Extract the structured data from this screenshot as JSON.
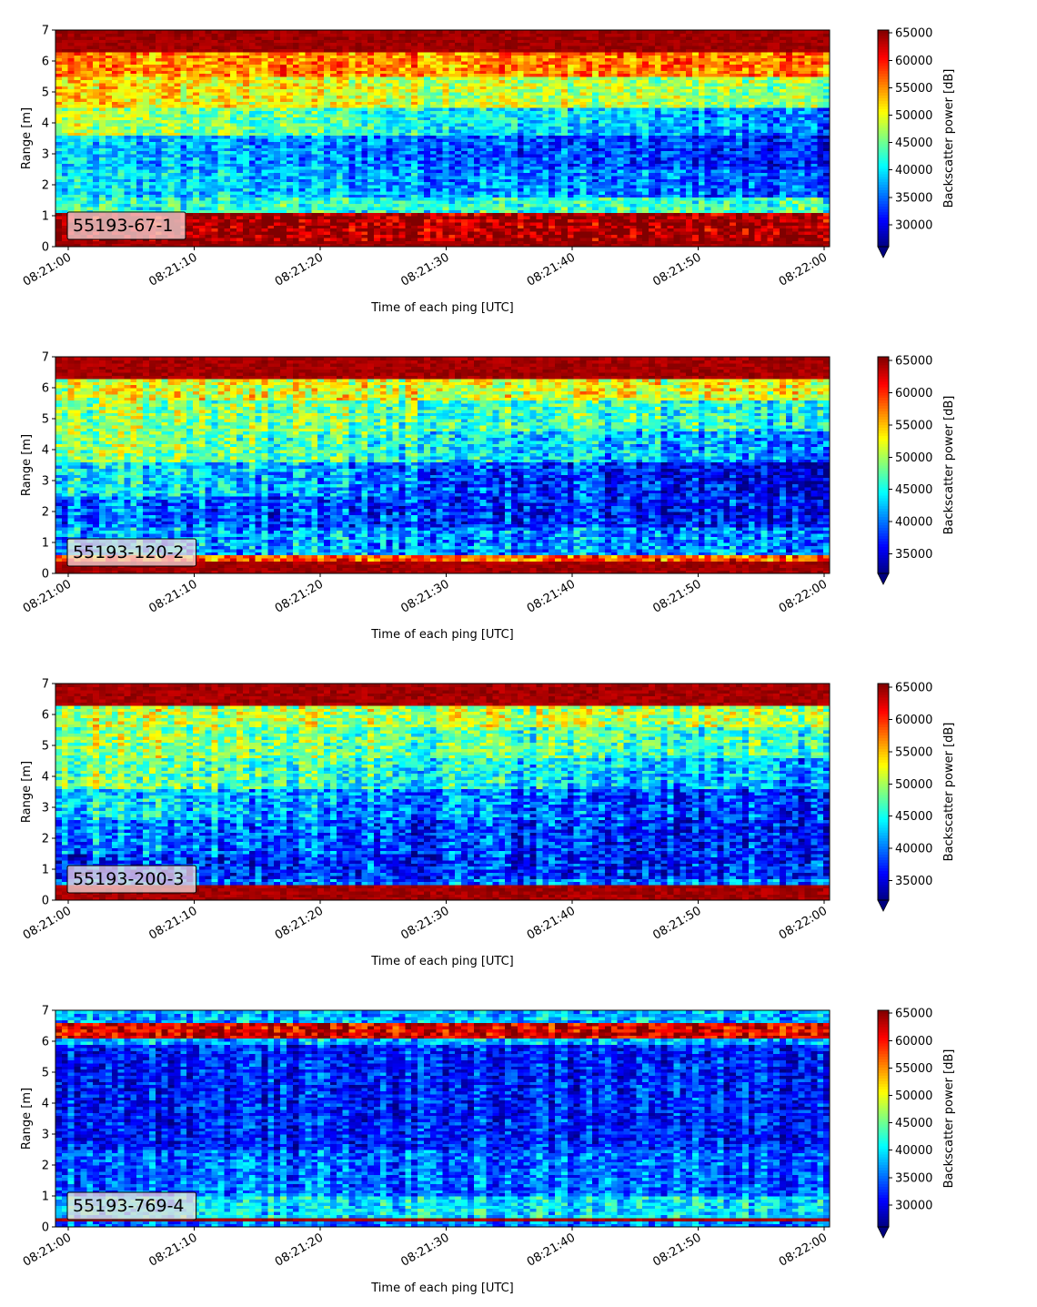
{
  "chart_data": [
    {
      "type": "heatmap",
      "label": "55193-67-1",
      "xlabel": "Time of each ping [UTC]",
      "ylabel": "Range [m]",
      "x_ticks": [
        "08:21:00",
        "08:21:10",
        "08:21:20",
        "08:21:30",
        "08:21:40",
        "08:21:50",
        "08:22:00"
      ],
      "x_range": [
        "08:21:00",
        "08:22:00"
      ],
      "ylim": [
        0,
        7
      ],
      "y_ticks": [
        0,
        1,
        2,
        3,
        4,
        5,
        6,
        7
      ],
      "colorbar": {
        "label": "Backscatter power [dB]",
        "range": [
          26000,
          65535
        ],
        "ticks": [
          30000,
          35000,
          40000,
          45000,
          50000,
          55000,
          60000,
          65000
        ],
        "extend": "min"
      },
      "colormap": "jet",
      "profile": [
        {
          "range": [
            0.0,
            0.25
          ],
          "start": 65535,
          "end": 65535
        },
        {
          "range": [
            0.25,
            1.15
          ],
          "start": 64000,
          "end": 64000
        },
        {
          "range": [
            1.15,
            1.6
          ],
          "start": 42000,
          "end": 43000
        },
        {
          "range": [
            1.6,
            2.5
          ],
          "start": 40000,
          "end": 34000
        },
        {
          "range": [
            2.5,
            3.6
          ],
          "start": 39000,
          "end": 31000
        },
        {
          "range": [
            3.6,
            4.5
          ],
          "start": 48000,
          "end": 35000
        },
        {
          "range": [
            4.5,
            5.5
          ],
          "start": 52000,
          "end": 46000
        },
        {
          "range": [
            5.5,
            6.3
          ],
          "start": 55000,
          "end": 56000
        },
        {
          "range": [
            6.3,
            7.0
          ],
          "start": 65535,
          "end": 65535
        }
      ]
    },
    {
      "type": "heatmap",
      "label": "55193-120-2",
      "xlabel": "Time of each ping [UTC]",
      "ylabel": "Range [m]",
      "x_ticks": [
        "08:21:00",
        "08:21:10",
        "08:21:20",
        "08:21:30",
        "08:21:40",
        "08:21:50",
        "08:22:00"
      ],
      "x_range": [
        "08:21:00",
        "08:22:00"
      ],
      "ylim": [
        0,
        7
      ],
      "y_ticks": [
        0,
        1,
        2,
        3,
        4,
        5,
        6,
        7
      ],
      "colorbar": {
        "label": "Backscatter power [dB]",
        "range": [
          32000,
          65535
        ],
        "ticks": [
          35000,
          40000,
          45000,
          50000,
          55000,
          60000,
          65000
        ],
        "extend": "min"
      },
      "colormap": "jet",
      "profile": [
        {
          "range": [
            0.0,
            0.4
          ],
          "start": 65535,
          "end": 65535
        },
        {
          "range": [
            0.4,
            0.65
          ],
          "start": 58000,
          "end": 58000
        },
        {
          "range": [
            0.65,
            1.5
          ],
          "start": 42000,
          "end": 40000
        },
        {
          "range": [
            1.5,
            2.5
          ],
          "start": 40000,
          "end": 36000
        },
        {
          "range": [
            2.5,
            3.6
          ],
          "start": 45000,
          "end": 34000
        },
        {
          "range": [
            3.6,
            4.6
          ],
          "start": 50000,
          "end": 40000
        },
        {
          "range": [
            4.6,
            5.6
          ],
          "start": 50000,
          "end": 45000
        },
        {
          "range": [
            5.6,
            6.3
          ],
          "start": 52000,
          "end": 52000
        },
        {
          "range": [
            6.3,
            7.0
          ],
          "start": 65535,
          "end": 65535
        }
      ]
    },
    {
      "type": "heatmap",
      "label": "55193-200-3",
      "xlabel": "Time of each ping [UTC]",
      "ylabel": "Range [m]",
      "x_ticks": [
        "08:21:00",
        "08:21:10",
        "08:21:20",
        "08:21:30",
        "08:21:40",
        "08:21:50",
        "08:22:00"
      ],
      "x_range": [
        "08:21:00",
        "08:22:00"
      ],
      "ylim": [
        0,
        7
      ],
      "y_ticks": [
        0,
        1,
        2,
        3,
        4,
        5,
        6,
        7
      ],
      "colorbar": {
        "label": "Backscatter power [dB]",
        "range": [
          32000,
          65535
        ],
        "ticks": [
          35000,
          40000,
          45000,
          50000,
          55000,
          60000,
          65000
        ],
        "extend": "min"
      },
      "colormap": "jet",
      "profile": [
        {
          "range": [
            0.0,
            0.45
          ],
          "start": 65535,
          "end": 65535
        },
        {
          "range": [
            0.45,
            0.7
          ],
          "start": 40000,
          "end": 40000
        },
        {
          "range": [
            0.7,
            1.5
          ],
          "start": 38000,
          "end": 37000
        },
        {
          "range": [
            1.5,
            2.6
          ],
          "start": 41000,
          "end": 36000
        },
        {
          "range": [
            2.6,
            3.6
          ],
          "start": 44000,
          "end": 37000
        },
        {
          "range": [
            3.6,
            4.6
          ],
          "start": 49000,
          "end": 41000
        },
        {
          "range": [
            4.6,
            5.6
          ],
          "start": 50000,
          "end": 46000
        },
        {
          "range": [
            5.6,
            6.3
          ],
          "start": 51000,
          "end": 50000
        },
        {
          "range": [
            6.3,
            7.0
          ],
          "start": 65535,
          "end": 65535
        }
      ]
    },
    {
      "type": "heatmap",
      "label": "55193-769-4",
      "xlabel": "Time of each ping [UTC]",
      "ylabel": "Range [m]",
      "x_ticks": [
        "08:21:00",
        "08:21:10",
        "08:21:20",
        "08:21:30",
        "08:21:40",
        "08:21:50",
        "08:22:00"
      ],
      "x_range": [
        "08:21:00",
        "08:22:00"
      ],
      "ylim": [
        0,
        7
      ],
      "y_ticks": [
        0,
        1,
        2,
        3,
        4,
        5,
        6,
        7
      ],
      "colorbar": {
        "label": "Backscatter power [dB]",
        "range": [
          26000,
          65535
        ],
        "ticks": [
          30000,
          35000,
          40000,
          45000,
          50000,
          55000,
          60000,
          65000
        ],
        "extend": "min"
      },
      "colormap": "jet",
      "profile": [
        {
          "range": [
            0.0,
            0.2
          ],
          "start": 36000,
          "end": 36000
        },
        {
          "range": [
            0.2,
            0.35
          ],
          "start": 65535,
          "end": 65535
        },
        {
          "range": [
            0.35,
            1.0
          ],
          "start": 40000,
          "end": 40000
        },
        {
          "range": [
            1.0,
            2.5
          ],
          "start": 35000,
          "end": 35000
        },
        {
          "range": [
            2.5,
            5.9
          ],
          "start": 32000,
          "end": 32000
        },
        {
          "range": [
            5.9,
            6.1
          ],
          "start": 38000,
          "end": 38000
        },
        {
          "range": [
            6.1,
            6.6
          ],
          "start": 62000,
          "end": 62000
        },
        {
          "range": [
            6.6,
            7.0
          ],
          "start": 38000,
          "end": 38000
        }
      ]
    }
  ]
}
